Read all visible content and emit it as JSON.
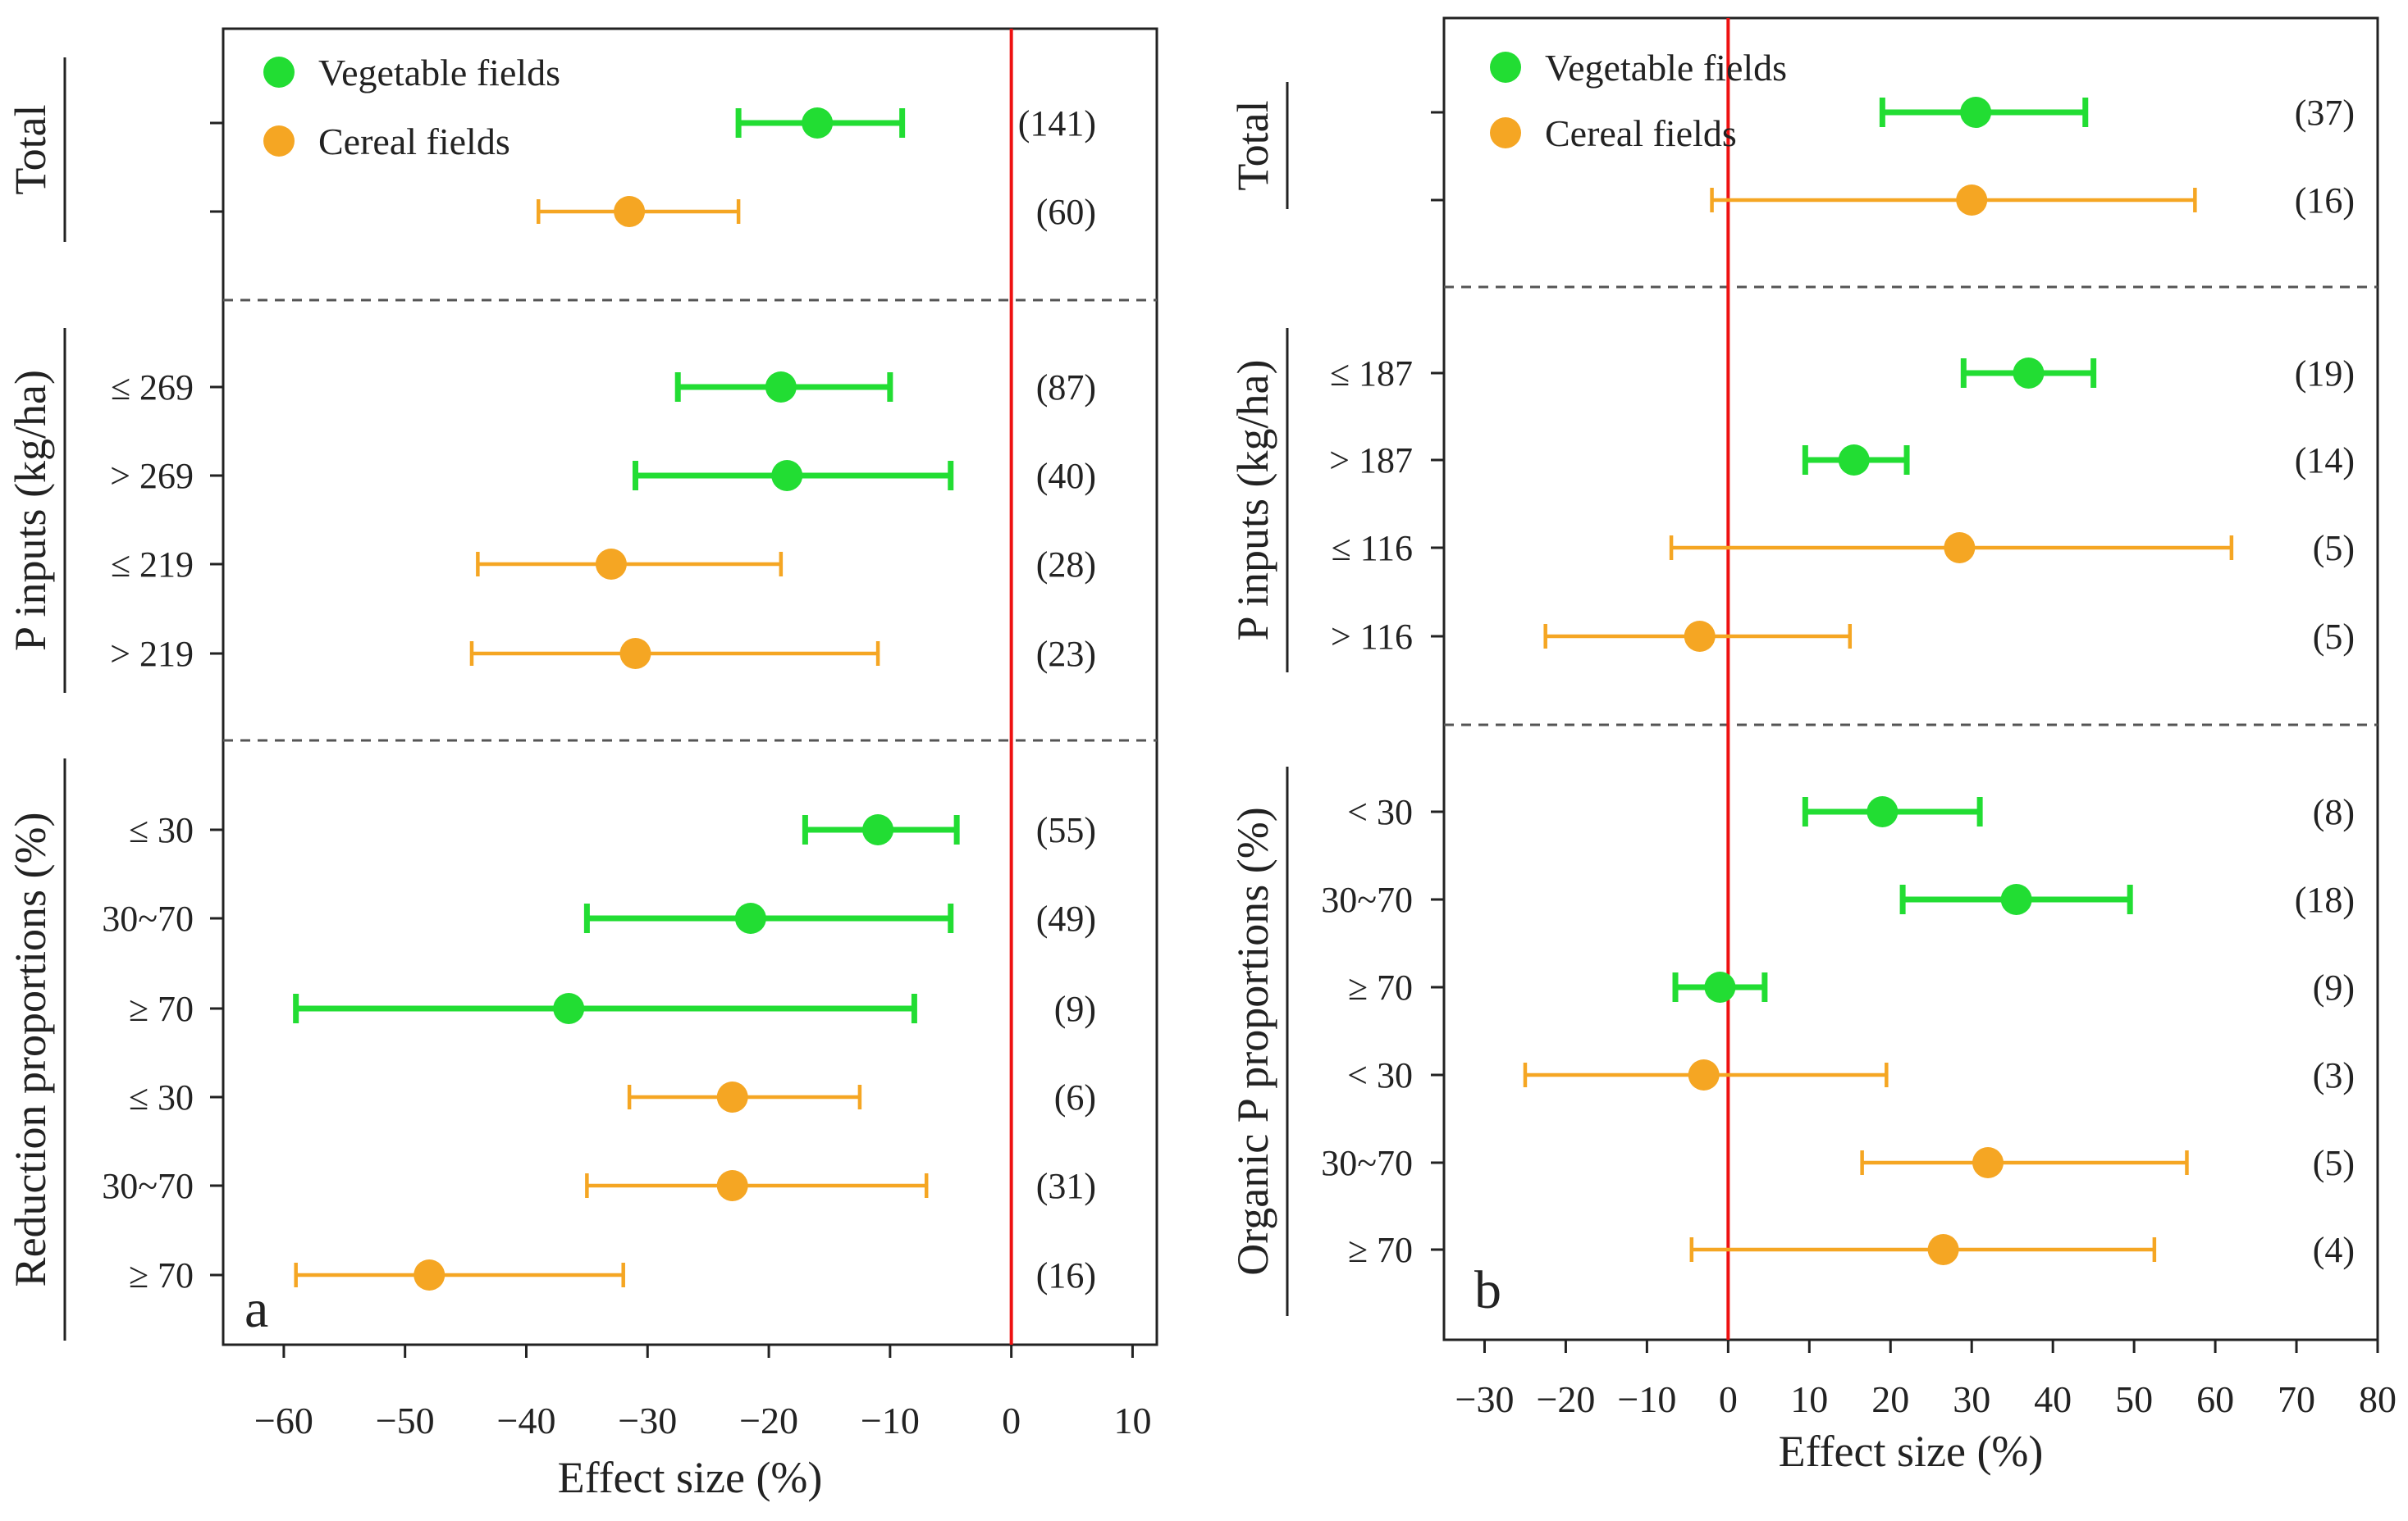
{
  "colors": {
    "vegetable": "#22dd33",
    "cereal": "#f5a623",
    "zero_line": "#ee1111",
    "axis": "#222222",
    "divider": "#555555"
  },
  "chart_data": [
    {
      "type": "forest",
      "panel_label": "a",
      "xlabel": "Effect size (%)",
      "xlim": [
        -65,
        12
      ],
      "xticks": [
        -60,
        -50,
        -40,
        -30,
        -20,
        -10,
        0,
        10
      ],
      "xtick_labels": [
        "−60",
        "−50",
        "−40",
        "−30",
        "−20",
        "−10",
        "0",
        "10"
      ],
      "legend": [
        {
          "name": "Vegetable fields",
          "series": "vegetable"
        },
        {
          "name": "Cereal fields",
          "series": "cereal"
        }
      ],
      "groups": [
        {
          "label": "Total",
          "rows": [
            0,
            1
          ]
        },
        {
          "label": "P inputs (kg/ha)",
          "rows": [
            2,
            3,
            4,
            5
          ]
        },
        {
          "label": "Reduction proportions (%)",
          "rows": [
            6,
            7,
            8,
            9,
            10,
            11
          ]
        }
      ],
      "rows": [
        {
          "label": "",
          "series": "vegetable",
          "mean": -16,
          "low": -22.5,
          "high": -9,
          "n": "(141)"
        },
        {
          "label": "",
          "series": "cereal",
          "mean": -31.5,
          "low": -39,
          "high": -22.5,
          "n": "(60)"
        },
        {
          "label": "≤ 269",
          "series": "vegetable",
          "mean": -19,
          "low": -27.5,
          "high": -10,
          "n": "(87)"
        },
        {
          "label": "> 269",
          "series": "vegetable",
          "mean": -18.5,
          "low": -31,
          "high": -5,
          "n": "(40)"
        },
        {
          "label": "≤ 219",
          "series": "cereal",
          "mean": -33,
          "low": -44,
          "high": -19,
          "n": "(28)"
        },
        {
          "label": "> 219",
          "series": "cereal",
          "mean": -31,
          "low": -44.5,
          "high": -11,
          "n": "(23)"
        },
        {
          "label": "≤ 30",
          "series": "vegetable",
          "mean": -11,
          "low": -17,
          "high": -4.5,
          "n": "(55)"
        },
        {
          "label": "30~70",
          "series": "vegetable",
          "mean": -21.5,
          "low": -35,
          "high": -5,
          "n": "(49)"
        },
        {
          "label": "≥ 70",
          "series": "vegetable",
          "mean": -36.5,
          "low": -59,
          "high": -8,
          "n": "(9)"
        },
        {
          "label": "≤ 30",
          "series": "cereal",
          "mean": -23,
          "low": -31.5,
          "high": -12.5,
          "n": "(6)"
        },
        {
          "label": "30~70",
          "series": "cereal",
          "mean": -23,
          "low": -35,
          "high": -7,
          "n": "(31)"
        },
        {
          "label": "≥ 70",
          "series": "cereal",
          "mean": -48,
          "low": -59,
          "high": -32,
          "n": "(16)"
        }
      ]
    },
    {
      "type": "forest",
      "panel_label": "b",
      "xlabel": "Effect size (%)",
      "xlim": [
        -35,
        80
      ],
      "xticks": [
        -30,
        -20,
        -10,
        0,
        10,
        20,
        30,
        40,
        50,
        60,
        70,
        80
      ],
      "xtick_labels": [
        "−30",
        "−20",
        "−10",
        "0",
        "10",
        "20",
        "30",
        "40",
        "50",
        "60",
        "70",
        "80"
      ],
      "legend": [
        {
          "name": "Vegetable fields",
          "series": "vegetable"
        },
        {
          "name": "Cereal  fields",
          "series": "cereal"
        }
      ],
      "groups": [
        {
          "label": "Total",
          "rows": [
            0,
            1
          ]
        },
        {
          "label": "P inputs (kg/ha)",
          "rows": [
            2,
            3,
            4,
            5
          ]
        },
        {
          "label": "Organic P proportions (%)",
          "rows": [
            6,
            7,
            8,
            9,
            10,
            11
          ]
        }
      ],
      "rows": [
        {
          "label": "",
          "series": "vegetable",
          "mean": 30.5,
          "low": 19,
          "high": 44,
          "n": "(37)"
        },
        {
          "label": "",
          "series": "cereal",
          "mean": 30,
          "low": -2,
          "high": 57.5,
          "n": "(16)"
        },
        {
          "label": "≤ 187",
          "series": "vegetable",
          "mean": 37,
          "low": 29,
          "high": 45,
          "n": "(19)"
        },
        {
          "label": "> 187",
          "series": "vegetable",
          "mean": 15.5,
          "low": 9.5,
          "high": 22,
          "n": "(14)"
        },
        {
          "label": "≤ 116",
          "series": "cereal",
          "mean": 28.5,
          "low": -7,
          "high": 62,
          "n": "(5)"
        },
        {
          "label": "> 116",
          "series": "cereal",
          "mean": -3.5,
          "low": -22.5,
          "high": 15,
          "n": "(5)"
        },
        {
          "label": "< 30",
          "series": "vegetable",
          "mean": 19,
          "low": 9.5,
          "high": 31,
          "n": "(8)"
        },
        {
          "label": "30~70",
          "series": "vegetable",
          "mean": 35.5,
          "low": 21.5,
          "high": 49.5,
          "n": "(18)"
        },
        {
          "label": "≥ 70",
          "series": "vegetable",
          "mean": -1,
          "low": -6.5,
          "high": 4.5,
          "n": "(9)"
        },
        {
          "label": "< 30",
          "series": "cereal",
          "mean": -3,
          "low": -25,
          "high": 19.5,
          "n": "(3)"
        },
        {
          "label": "30~70",
          "series": "cereal",
          "mean": 32,
          "low": 16.5,
          "high": 56.5,
          "n": "(5)"
        },
        {
          "label": "≥ 70",
          "series": "cereal",
          "mean": 26.5,
          "low": -4.5,
          "high": 52.5,
          "n": "(4)"
        }
      ]
    }
  ]
}
